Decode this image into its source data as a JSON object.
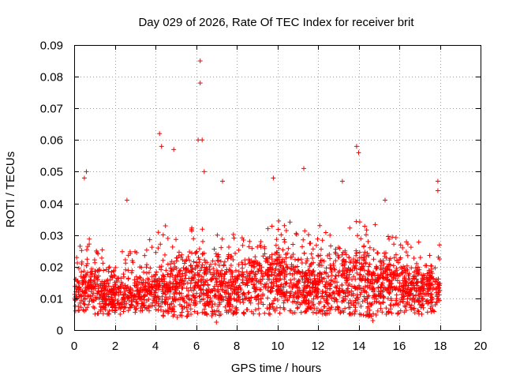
{
  "chart_data": {
    "type": "scatter",
    "title": "Day 029 of 2026, Rate Of TEC Index for receiver brit",
    "xlabel": "GPS time / hours",
    "ylabel": "ROTI / TECUs",
    "xlim": [
      0,
      20
    ],
    "ylim": [
      0,
      0.09
    ],
    "xticks": [
      "0",
      "2",
      "4",
      "6",
      "8",
      "10",
      "12",
      "14",
      "16",
      "18",
      "20"
    ],
    "yticks": [
      "0",
      "0.01",
      "0.02",
      "0.03",
      "0.04",
      "0.05",
      "0.06",
      "0.07",
      "0.08",
      "0.09"
    ],
    "grid": true,
    "marker": "+",
    "color": "#ff0000",
    "x_range_of_data": [
      0,
      18
    ],
    "notable_points": [
      {
        "x": 6.2,
        "y": 0.085
      },
      {
        "x": 6.2,
        "y": 0.078
      },
      {
        "x": 4.2,
        "y": 0.062
      },
      {
        "x": 4.3,
        "y": 0.058
      },
      {
        "x": 4.9,
        "y": 0.057
      },
      {
        "x": 6.1,
        "y": 0.06
      },
      {
        "x": 6.3,
        "y": 0.06
      },
      {
        "x": 13.9,
        "y": 0.058
      },
      {
        "x": 14.0,
        "y": 0.056
      },
      {
        "x": 11.3,
        "y": 0.051
      },
      {
        "x": 0.6,
        "y": 0.05
      },
      {
        "x": 0.5,
        "y": 0.048
      },
      {
        "x": 6.4,
        "y": 0.05
      },
      {
        "x": 17.9,
        "y": 0.047
      },
      {
        "x": 17.9,
        "y": 0.044
      },
      {
        "x": 7.3,
        "y": 0.047
      },
      {
        "x": 9.8,
        "y": 0.048
      },
      {
        "x": 13.2,
        "y": 0.047
      },
      {
        "x": 15.3,
        "y": 0.041
      },
      {
        "x": 2.6,
        "y": 0.041
      },
      {
        "x": 7.0,
        "y": 0.0025
      },
      {
        "x": 14.7,
        "y": 0.003
      }
    ],
    "envelope_hours": [
      0,
      0.5,
      1,
      1.5,
      2,
      2.5,
      3,
      3.5,
      4,
      4.5,
      5,
      5.5,
      6,
      6.5,
      7,
      7.5,
      8,
      8.5,
      9,
      9.5,
      10,
      10.5,
      11,
      11.5,
      12,
      12.5,
      13,
      13.5,
      14,
      14.5,
      15,
      15.5,
      16,
      16.5,
      17,
      17.5,
      18
    ],
    "envelope_low": [
      0.006,
      0.006,
      0.005,
      0.005,
      0.005,
      0.005,
      0.005,
      0.006,
      0.006,
      0.004,
      0.004,
      0.004,
      0.005,
      0.005,
      0.004,
      0.005,
      0.005,
      0.005,
      0.005,
      0.005,
      0.005,
      0.005,
      0.005,
      0.006,
      0.005,
      0.005,
      0.005,
      0.005,
      0.005,
      0.004,
      0.005,
      0.005,
      0.005,
      0.005,
      0.005,
      0.005,
      0.006
    ],
    "envelope_high": [
      0.026,
      0.032,
      0.03,
      0.027,
      0.024,
      0.025,
      0.025,
      0.024,
      0.035,
      0.034,
      0.029,
      0.03,
      0.034,
      0.032,
      0.033,
      0.03,
      0.031,
      0.031,
      0.031,
      0.032,
      0.036,
      0.034,
      0.035,
      0.032,
      0.034,
      0.03,
      0.031,
      0.033,
      0.037,
      0.034,
      0.033,
      0.03,
      0.03,
      0.028,
      0.028,
      0.028,
      0.027
    ],
    "envelope_core": [
      0.0125,
      0.0135,
      0.013,
      0.012,
      0.012,
      0.011,
      0.0115,
      0.012,
      0.013,
      0.013,
      0.0135,
      0.014,
      0.0145,
      0.0145,
      0.014,
      0.014,
      0.014,
      0.0145,
      0.015,
      0.0155,
      0.016,
      0.0155,
      0.015,
      0.0145,
      0.0145,
      0.0145,
      0.015,
      0.015,
      0.016,
      0.015,
      0.015,
      0.0145,
      0.014,
      0.0135,
      0.013,
      0.013,
      0.0125
    ]
  }
}
